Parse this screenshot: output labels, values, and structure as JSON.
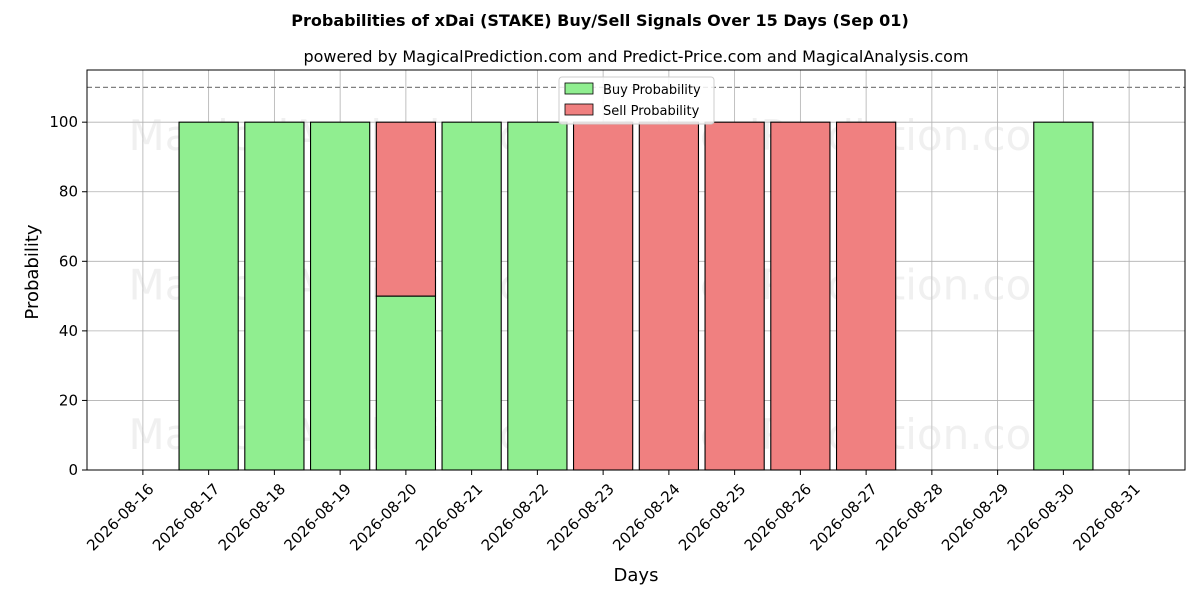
{
  "chart_data": {
    "type": "bar",
    "stacked": true,
    "title": "Probabilities of xDai (STAKE) Buy/Sell Signals Over 15 Days (Sep 01)",
    "subtitle": "powered by MagicalPrediction.com and Predict-Price.com and MagicalAnalysis.com",
    "xlabel": "Days",
    "ylabel": "Probability",
    "x_ticks": [
      "2026-08-16",
      "2026-08-17",
      "2026-08-18",
      "2026-08-19",
      "2026-08-20",
      "2026-08-21",
      "2026-08-22",
      "2026-08-23",
      "2026-08-24",
      "2026-08-25",
      "2026-08-26",
      "2026-08-27",
      "2026-08-28",
      "2026-08-29",
      "2026-08-30",
      "2026-08-31"
    ],
    "y_ticks": [
      0,
      20,
      40,
      60,
      80,
      100
    ],
    "ylim": [
      0,
      115
    ],
    "reference_line": 110,
    "grid": true,
    "legend_position": "top-center",
    "categories": [
      "2026-08-17",
      "2026-08-18",
      "2026-08-19",
      "2026-08-20",
      "2026-08-21",
      "2026-08-22",
      "2026-08-23",
      "2026-08-24",
      "2026-08-25",
      "2026-08-26",
      "2026-08-27",
      "2026-08-30"
    ],
    "series": [
      {
        "name": "Buy Probability",
        "color": "#90ee90",
        "values": [
          100,
          100,
          100,
          50,
          100,
          100,
          0,
          0,
          0,
          0,
          0,
          100
        ]
      },
      {
        "name": "Sell Probability",
        "color": "#f08080",
        "values": [
          0,
          0,
          0,
          50,
          0,
          0,
          100,
          100,
          100,
          100,
          100,
          0
        ]
      }
    ],
    "watermarks": [
      "MagicalAnalysis.com",
      "MagicalPrediction.com"
    ]
  }
}
